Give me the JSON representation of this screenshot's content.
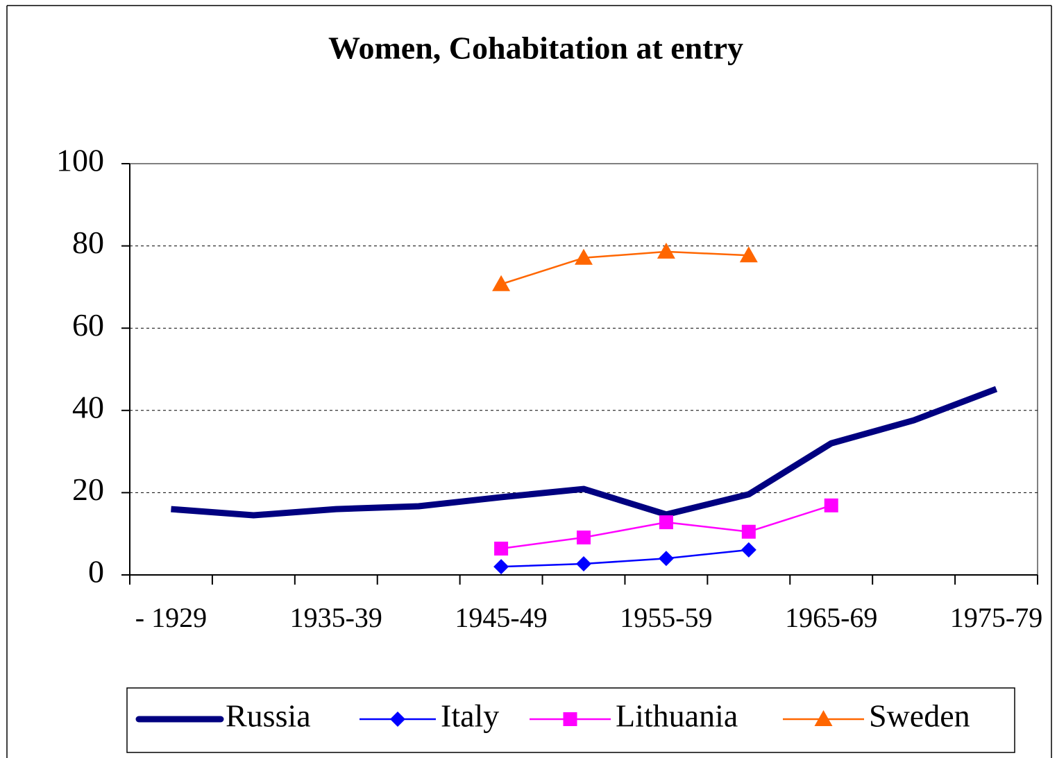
{
  "chart_data": {
    "type": "line",
    "title": "Women, Cohabitation at entry",
    "categories": [
      "- 1929",
      null,
      "1935-39",
      null,
      "1945-49",
      null,
      "1955-59",
      null,
      "1965-69",
      null,
      "1975-79"
    ],
    "series": [
      {
        "name": "Russia",
        "color": "#000080",
        "values": [
          16,
          14.5,
          16,
          16.7,
          18.9,
          20.9,
          14.7,
          19.6,
          32,
          37.6,
          45.2
        ]
      },
      {
        "name": "Italy",
        "color": "#0000ff",
        "marker": "diamond",
        "values": [
          null,
          null,
          null,
          null,
          2,
          2.7,
          4,
          6.1,
          null,
          null,
          null
        ]
      },
      {
        "name": "Lithuania",
        "color": "#ff00ff",
        "marker": "square",
        "values": [
          null,
          null,
          null,
          null,
          6.4,
          9.1,
          12.8,
          10.5,
          16.9,
          null,
          null
        ]
      },
      {
        "name": "Sweden",
        "color": "#ff6600",
        "marker": "triangle",
        "values": [
          null,
          null,
          null,
          null,
          70.7,
          77.1,
          78.6,
          77.7,
          null,
          null,
          null
        ]
      }
    ],
    "ylim": [
      0,
      100
    ],
    "yticks": [
      0,
      20,
      40,
      60,
      80,
      100
    ],
    "grid": true,
    "legend": "bottom"
  }
}
